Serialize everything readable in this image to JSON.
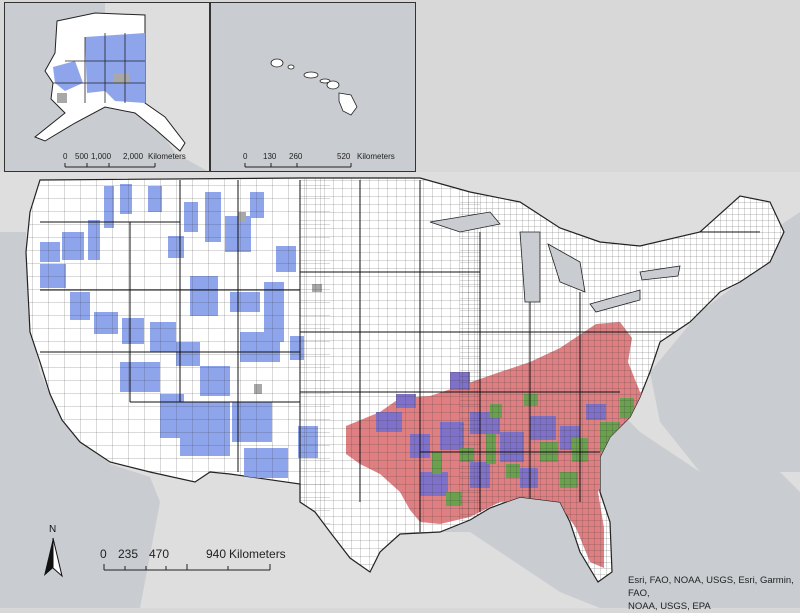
{
  "map": {
    "legend_colors": {
      "blue": "#8ea5ec",
      "red": "#e07f82",
      "purple": "#7f70c9",
      "green": "#6aa04e",
      "gray": "#a8a8a8",
      "white": "#ffffff",
      "water": "#c9ccd0",
      "land": "#dedede"
    },
    "alaska_inset": {
      "scale_ticks": [
        "0",
        "500",
        "1,000",
        "2,000"
      ],
      "scale_unit": "Kilometers"
    },
    "hawaii_inset": {
      "scale_ticks": [
        "0",
        "130",
        "260",
        "520"
      ],
      "scale_unit": "Kilometers"
    },
    "main_scale": {
      "ticks": [
        "0",
        "235",
        "470",
        "940"
      ],
      "unit": "Kilometers"
    },
    "north_arrow": {
      "label": "N",
      "icon": "north-arrow-icon"
    },
    "attribution": {
      "line1": "Esri, FAO, NOAA, USGS, Esri, Garmin, FAO,",
      "line2": "NOAA, USGS, EPA"
    }
  }
}
